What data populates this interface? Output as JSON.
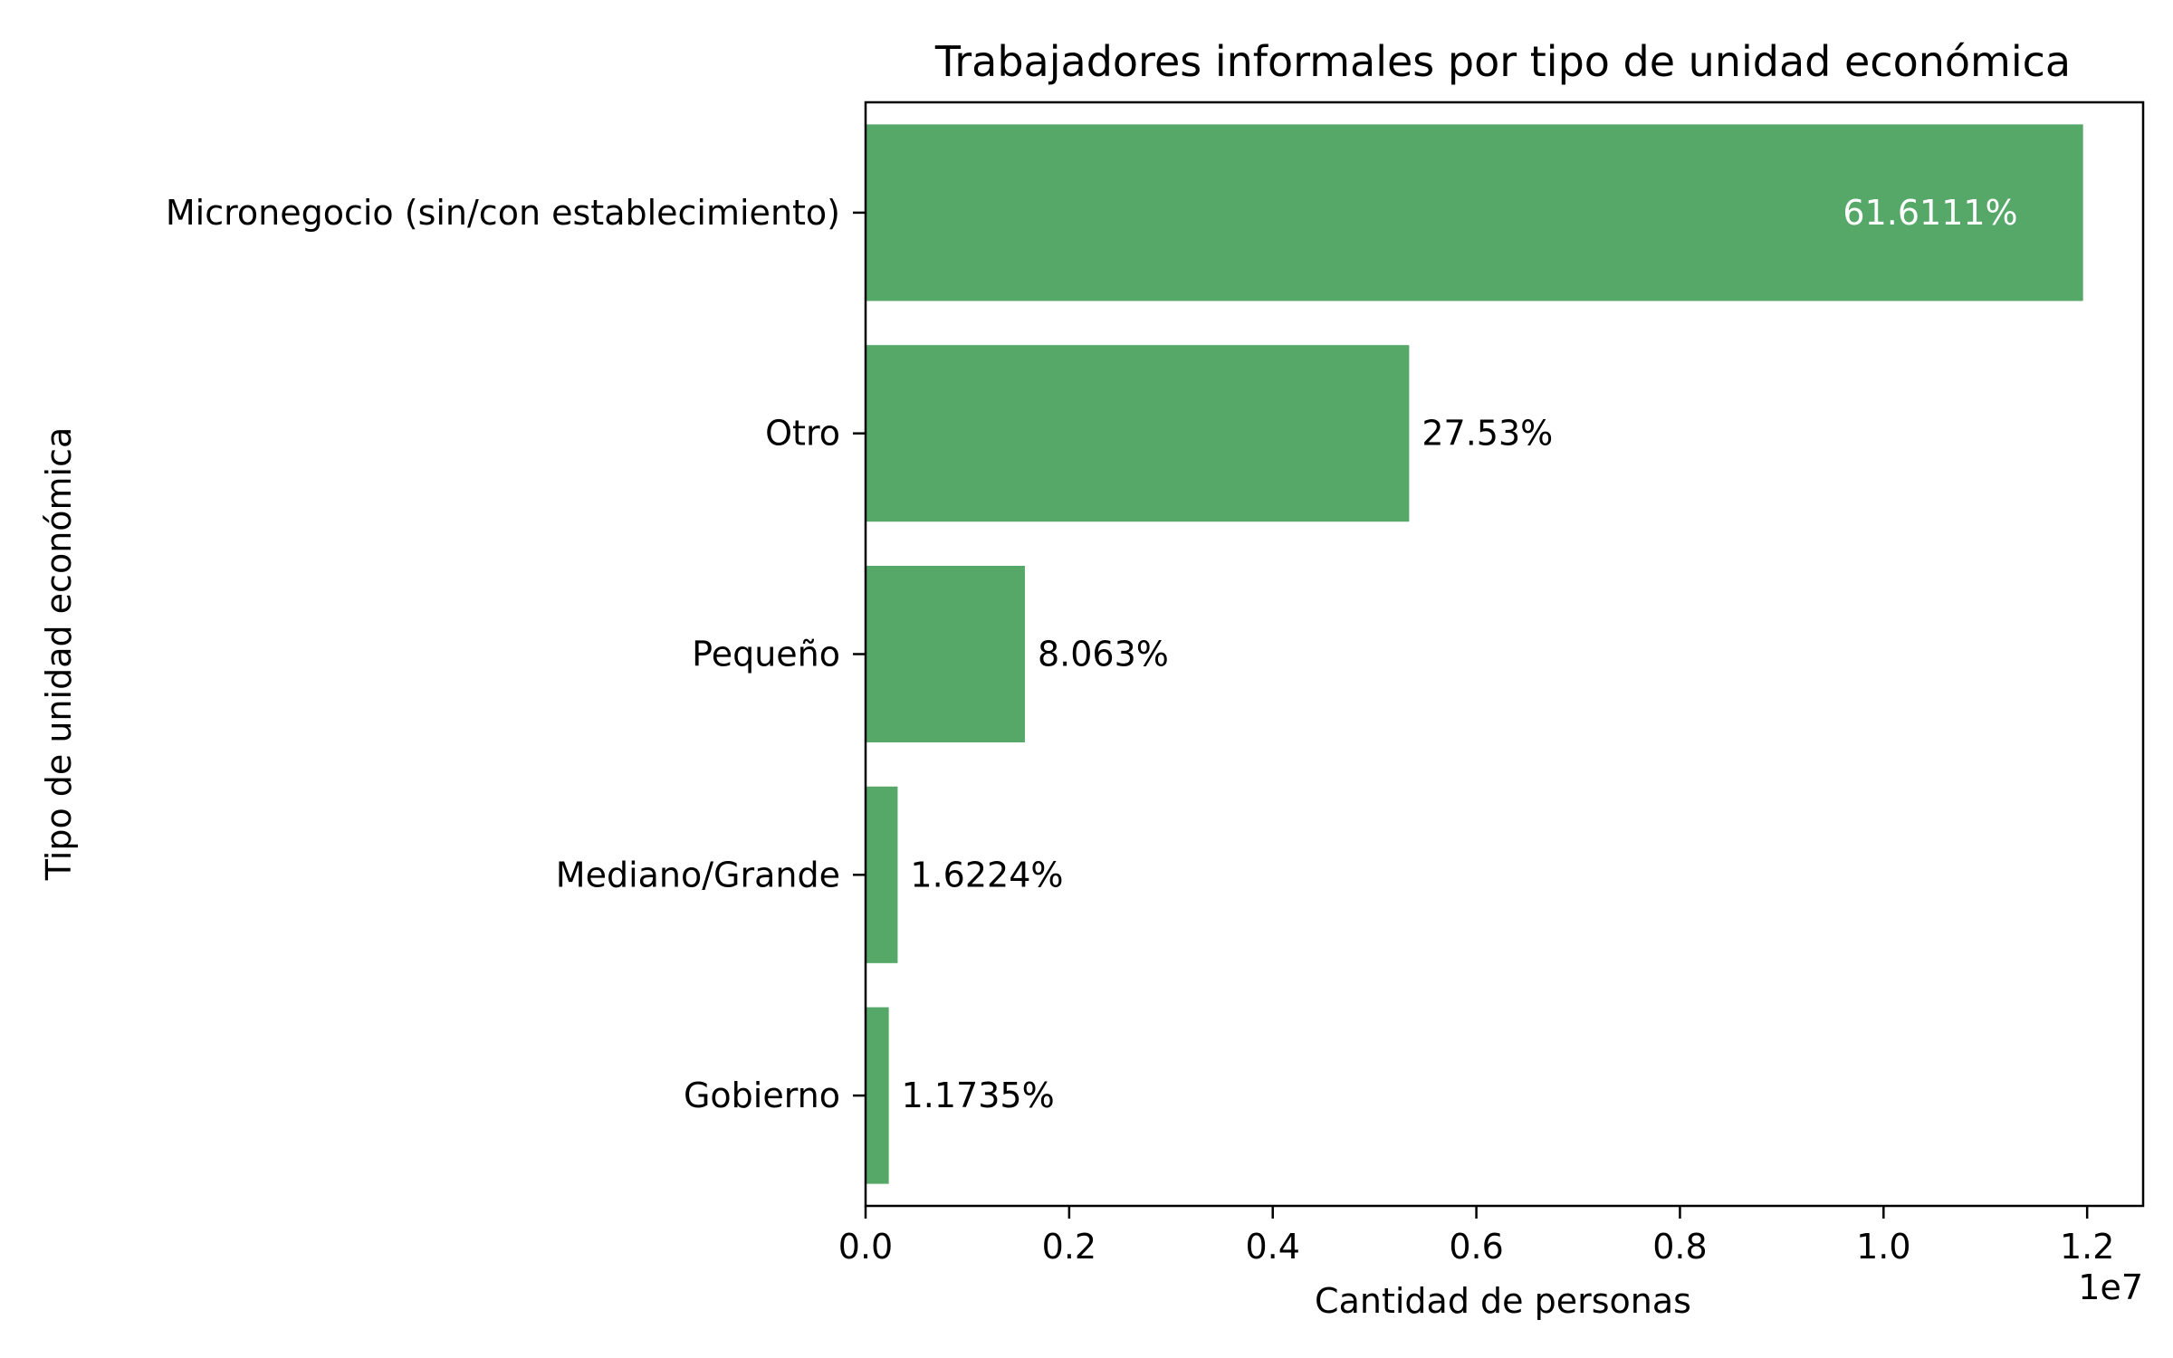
{
  "chart_data": {
    "type": "bar",
    "orientation": "horizontal",
    "title": "Trabajadores informales por tipo de unidad económica",
    "xlabel": "Cantidad de personas",
    "ylabel": "Tipo de unidad económica",
    "x_offset_label": "1e7",
    "xlim": [
      0,
      12550000
    ],
    "x_ticks": [
      0,
      2000000,
      4000000,
      6000000,
      8000000,
      10000000,
      12000000
    ],
    "x_tick_labels": [
      "0.0",
      "0.2",
      "0.4",
      "0.6",
      "0.8",
      "1.0",
      "1.2"
    ],
    "categories": [
      "Micronegocio (sin/con establecimiento)",
      "Otro",
      "Pequeño",
      "Mediano/Grande",
      "Gobierno"
    ],
    "values": [
      11960000,
      5340000,
      1565000,
      315000,
      228000
    ],
    "data_labels": [
      "61.6111%",
      "27.53%",
      "8.063%",
      "1.6224%",
      "1.1735%"
    ],
    "bar_color": "#55a868",
    "grid": false,
    "legend": "none"
  }
}
